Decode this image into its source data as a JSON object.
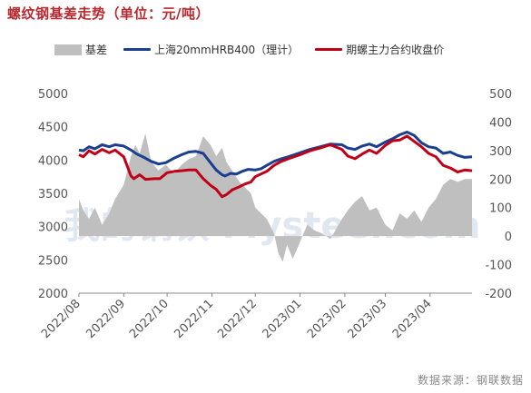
{
  "title": "螺纹钢基差走势（单位：元/吨）",
  "source": "数据来源：钢联数据",
  "watermark": "我的钢铁 Mysteel.com",
  "colors": {
    "basis": "#bfbfbf",
    "spot": "#1a3f8f",
    "futures": "#c00017",
    "title": "#b8282e"
  },
  "chart_data": {
    "type": "line",
    "legend": [
      "基差",
      "上海20mmHRB400（理计）",
      "期螺主力合约收盘价"
    ],
    "legend_position": "top",
    "x_axis": {
      "start": "2022-08-01",
      "end": "2023-04-30",
      "ticks": [
        "2022/08",
        "2022/09",
        "2022/10",
        "2022/11",
        "2022/12",
        "2023/01",
        "2023/02",
        "2023/03",
        "2023/04"
      ]
    },
    "y_left": {
      "min": 2000,
      "max": 5000,
      "ticks": [
        2000,
        2500,
        3000,
        3500,
        4000,
        4500,
        5000
      ]
    },
    "y_right": {
      "min": -200,
      "max": 500,
      "ticks": [
        -200,
        -100,
        0,
        100,
        200,
        300,
        400,
        500
      ]
    },
    "series": [
      {
        "name": "上海20mmHRB400（理计）",
        "axis": "left",
        "points": [
          [
            "2022-08-01",
            4150
          ],
          [
            "2022-08-04",
            4140
          ],
          [
            "2022-08-08",
            4200
          ],
          [
            "2022-08-12",
            4170
          ],
          [
            "2022-08-17",
            4230
          ],
          [
            "2022-08-22",
            4200
          ],
          [
            "2022-08-26",
            4230
          ],
          [
            "2022-09-01",
            4210
          ],
          [
            "2022-09-06",
            4150
          ],
          [
            "2022-09-10",
            4090
          ],
          [
            "2022-09-15",
            4040
          ],
          [
            "2022-09-20",
            3980
          ],
          [
            "2022-09-25",
            3940
          ],
          [
            "2022-09-30",
            3960
          ],
          [
            "2022-10-06",
            4030
          ],
          [
            "2022-10-11",
            4080
          ],
          [
            "2022-10-16",
            4120
          ],
          [
            "2022-10-21",
            4130
          ],
          [
            "2022-10-26",
            4100
          ],
          [
            "2022-10-31",
            3960
          ],
          [
            "2022-11-04",
            3850
          ],
          [
            "2022-11-08",
            3780
          ],
          [
            "2022-11-10",
            3760
          ],
          [
            "2022-11-14",
            3800
          ],
          [
            "2022-11-18",
            3790
          ],
          [
            "2022-11-22",
            3830
          ],
          [
            "2022-11-26",
            3860
          ],
          [
            "2022-12-01",
            3850
          ],
          [
            "2022-12-05",
            3870
          ],
          [
            "2022-12-09",
            3920
          ],
          [
            "2022-12-14",
            3980
          ],
          [
            "2022-12-19",
            4020
          ],
          [
            "2022-12-24",
            4050
          ],
          [
            "2023-01-01",
            4110
          ],
          [
            "2023-01-08",
            4160
          ],
          [
            "2023-01-15",
            4200
          ],
          [
            "2023-01-22",
            4240
          ],
          [
            "2023-01-30",
            4230
          ],
          [
            "2023-02-03",
            4180
          ],
          [
            "2023-02-08",
            4160
          ],
          [
            "2023-02-13",
            4210
          ],
          [
            "2023-02-18",
            4240
          ],
          [
            "2023-02-23",
            4200
          ],
          [
            "2023-03-01",
            4270
          ],
          [
            "2023-03-06",
            4320
          ],
          [
            "2023-03-11",
            4380
          ],
          [
            "2023-03-16",
            4420
          ],
          [
            "2023-03-21",
            4370
          ],
          [
            "2023-03-26",
            4260
          ],
          [
            "2023-03-31",
            4200
          ],
          [
            "2023-04-05",
            4180
          ],
          [
            "2023-04-10",
            4100
          ],
          [
            "2023-04-15",
            4120
          ],
          [
            "2023-04-20",
            4070
          ],
          [
            "2023-04-25",
            4040
          ],
          [
            "2023-04-30",
            4050
          ]
        ]
      },
      {
        "name": "期螺主力合约收盘价",
        "axis": "left",
        "points": [
          [
            "2022-08-01",
            4080
          ],
          [
            "2022-08-04",
            4050
          ],
          [
            "2022-08-08",
            4140
          ],
          [
            "2022-08-12",
            4090
          ],
          [
            "2022-08-17",
            4160
          ],
          [
            "2022-08-22",
            4110
          ],
          [
            "2022-08-26",
            4150
          ],
          [
            "2022-09-01",
            4050
          ],
          [
            "2022-09-06",
            3760
          ],
          [
            "2022-09-08",
            3720
          ],
          [
            "2022-09-12",
            3780
          ],
          [
            "2022-09-16",
            3710
          ],
          [
            "2022-09-22",
            3720
          ],
          [
            "2022-09-26",
            3720
          ],
          [
            "2022-10-01",
            3810
          ],
          [
            "2022-10-06",
            3830
          ],
          [
            "2022-10-11",
            3840
          ],
          [
            "2022-10-16",
            3850
          ],
          [
            "2022-10-21",
            3850
          ],
          [
            "2022-10-26",
            3720
          ],
          [
            "2022-10-31",
            3620
          ],
          [
            "2022-11-04",
            3560
          ],
          [
            "2022-11-08",
            3450
          ],
          [
            "2022-11-11",
            3480
          ],
          [
            "2022-11-15",
            3550
          ],
          [
            "2022-11-20",
            3600
          ],
          [
            "2022-11-24",
            3640
          ],
          [
            "2022-11-28",
            3670
          ],
          [
            "2022-12-01",
            3750
          ],
          [
            "2022-12-05",
            3790
          ],
          [
            "2022-12-09",
            3830
          ],
          [
            "2022-12-14",
            3920
          ],
          [
            "2022-12-19",
            3980
          ],
          [
            "2022-12-24",
            4020
          ],
          [
            "2023-01-01",
            4080
          ],
          [
            "2023-01-08",
            4140
          ],
          [
            "2023-01-15",
            4180
          ],
          [
            "2023-01-22",
            4230
          ],
          [
            "2023-01-30",
            4160
          ],
          [
            "2023-02-03",
            4060
          ],
          [
            "2023-02-08",
            4020
          ],
          [
            "2023-02-13",
            4090
          ],
          [
            "2023-02-18",
            4150
          ],
          [
            "2023-02-23",
            4100
          ],
          [
            "2023-03-01",
            4220
          ],
          [
            "2023-03-06",
            4290
          ],
          [
            "2023-03-11",
            4300
          ],
          [
            "2023-03-16",
            4360
          ],
          [
            "2023-03-21",
            4280
          ],
          [
            "2023-03-26",
            4200
          ],
          [
            "2023-03-31",
            4100
          ],
          [
            "2023-04-05",
            4050
          ],
          [
            "2023-04-10",
            3920
          ],
          [
            "2023-04-15",
            3880
          ],
          [
            "2023-04-20",
            3820
          ],
          [
            "2023-04-25",
            3850
          ],
          [
            "2023-04-30",
            3840
          ]
        ]
      },
      {
        "name": "基差",
        "axis": "right",
        "type": "area",
        "points": [
          [
            "2022-08-01",
            130
          ],
          [
            "2022-08-04",
            90
          ],
          [
            "2022-08-08",
            60
          ],
          [
            "2022-08-12",
            100
          ],
          [
            "2022-08-17",
            40
          ],
          [
            "2022-08-22",
            80
          ],
          [
            "2022-08-26",
            130
          ],
          [
            "2022-09-01",
            180
          ],
          [
            "2022-09-06",
            280
          ],
          [
            "2022-09-09",
            320
          ],
          [
            "2022-09-12",
            290
          ],
          [
            "2022-09-16",
            360
          ],
          [
            "2022-09-20",
            260
          ],
          [
            "2022-09-25",
            230
          ],
          [
            "2022-09-30",
            250
          ],
          [
            "2022-10-06",
            220
          ],
          [
            "2022-10-11",
            250
          ],
          [
            "2022-10-16",
            270
          ],
          [
            "2022-10-21",
            280
          ],
          [
            "2022-10-26",
            350
          ],
          [
            "2022-10-31",
            320
          ],
          [
            "2022-11-04",
            280
          ],
          [
            "2022-11-08",
            310
          ],
          [
            "2022-11-11",
            260
          ],
          [
            "2022-11-15",
            230
          ],
          [
            "2022-11-20",
            190
          ],
          [
            "2022-11-24",
            170
          ],
          [
            "2022-11-28",
            150
          ],
          [
            "2022-12-01",
            100
          ],
          [
            "2022-12-05",
            80
          ],
          [
            "2022-12-09",
            60
          ],
          [
            "2022-12-14",
            10
          ],
          [
            "2022-12-17",
            -60
          ],
          [
            "2022-12-20",
            -90
          ],
          [
            "2022-12-23",
            -30
          ],
          [
            "2022-12-27",
            -80
          ],
          [
            "2023-01-01",
            -20
          ],
          [
            "2023-01-06",
            40
          ],
          [
            "2023-01-11",
            20
          ],
          [
            "2023-01-16",
            10
          ],
          [
            "2023-01-22",
            -10
          ],
          [
            "2023-01-30",
            60
          ],
          [
            "2023-02-03",
            90
          ],
          [
            "2023-02-08",
            120
          ],
          [
            "2023-02-13",
            140
          ],
          [
            "2023-02-18",
            90
          ],
          [
            "2023-02-23",
            100
          ],
          [
            "2023-03-01",
            40
          ],
          [
            "2023-03-06",
            20
          ],
          [
            "2023-03-11",
            80
          ],
          [
            "2023-03-16",
            60
          ],
          [
            "2023-03-21",
            90
          ],
          [
            "2023-03-26",
            50
          ],
          [
            "2023-03-31",
            100
          ],
          [
            "2023-04-05",
            130
          ],
          [
            "2023-04-10",
            180
          ],
          [
            "2023-04-15",
            200
          ],
          [
            "2023-04-20",
            190
          ],
          [
            "2023-04-25",
            200
          ],
          [
            "2023-04-30",
            200
          ]
        ]
      }
    ]
  }
}
